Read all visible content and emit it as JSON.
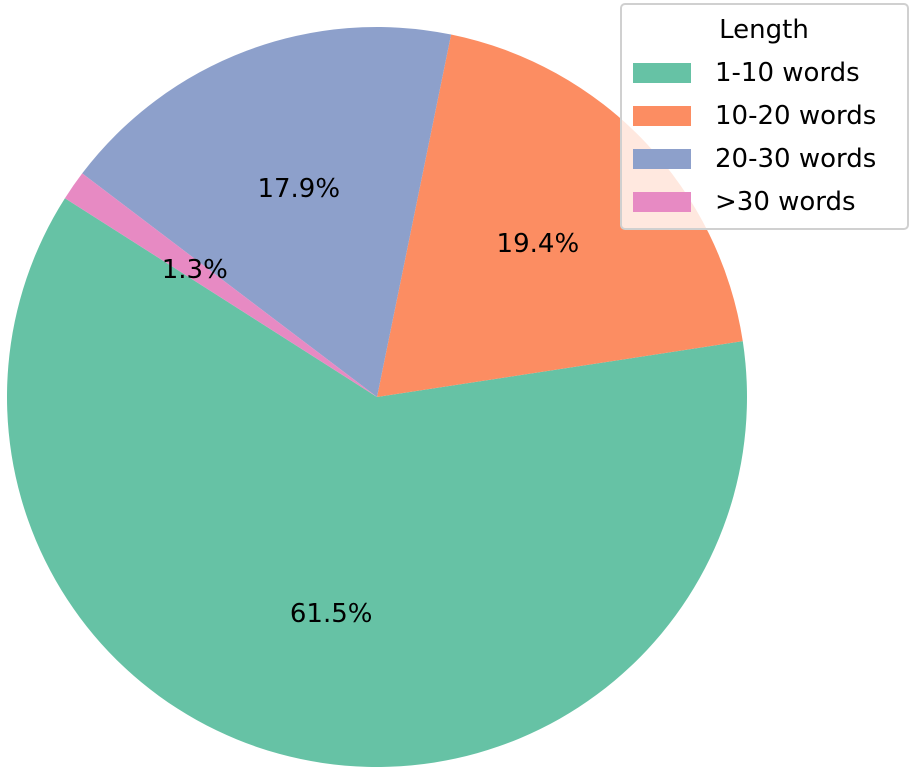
{
  "chart_data": {
    "type": "pie",
    "legend_title": "Length",
    "legend_position": "top-right",
    "slices": [
      {
        "label": "1-10 words",
        "value": 61.5,
        "display": "61.5%",
        "color": "#66c2a5"
      },
      {
        "label": "10-20 words",
        "value": 19.4,
        "display": "19.4%",
        "color": "#fc8d62"
      },
      {
        "label": "20-30 words",
        "value": 17.9,
        "display": "17.9%",
        "color": "#8da0cb"
      },
      {
        "label": ">30 words",
        "value": 1.3,
        "display": "1.3%",
        "color": "#e78ac3"
      }
    ]
  }
}
